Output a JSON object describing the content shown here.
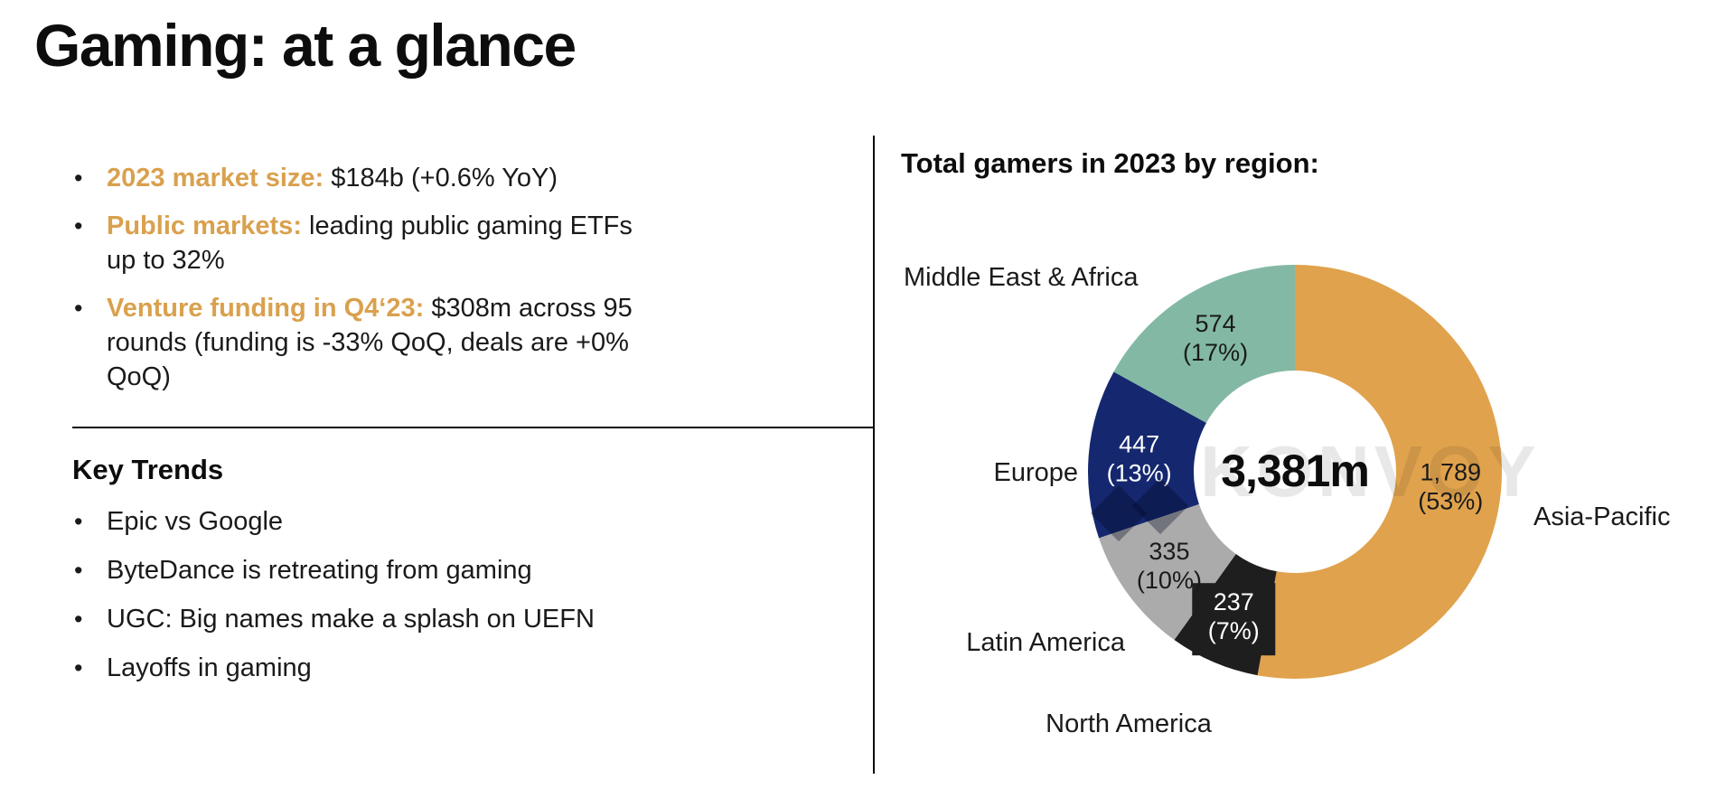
{
  "title": "Gaming: at a glance",
  "colors": {
    "accent": "#D9A14E",
    "text": "#1A1A1A",
    "background": "#FFFFFF"
  },
  "overview": {
    "bullets": [
      {
        "lead": "2023 market size:",
        "text": " $184b (+0.6% YoY)"
      },
      {
        "lead": "Public markets:",
        "text": " leading public gaming ETFs up to 32%"
      },
      {
        "lead": "Venture funding in Q4‘23:",
        "text": " $308m across 95 rounds (funding is -33% QoQ, deals are +0% QoQ)"
      }
    ]
  },
  "key_trends": {
    "heading": "Key Trends",
    "items": [
      "Epic vs Google",
      "ByteDance is retreating from gaming",
      "UGC: Big names make a splash on UEFN",
      "Layoffs in gaming"
    ]
  },
  "chart_data": {
    "type": "pie",
    "variant": "donut",
    "title": "Total gamers in 2023 by region:",
    "center_total": "3,381m",
    "total_value_millions": 3381,
    "watermark": "KONVOY",
    "legend_position": "outside-labels",
    "segments": [
      {
        "label": "Asia-Pacific",
        "value": 1789,
        "pct": 53,
        "color": "#E0A24C",
        "label_color": "#1A1A1A"
      },
      {
        "label": "North America",
        "value": 237,
        "pct": 7,
        "color": "#1E1E1E",
        "label_color": "#FFFFFF",
        "label_bg": "#1E1E1E"
      },
      {
        "label": "Latin America",
        "value": 335,
        "pct": 10,
        "color": "#ABABAB",
        "label_color": "#1A1A1A"
      },
      {
        "label": "Europe",
        "value": 447,
        "pct": 13,
        "color": "#15286F",
        "label_color": "#FFFFFF"
      },
      {
        "label": "Middle East & Africa",
        "value": 574,
        "pct": 17,
        "color": "#83B9A4",
        "label_color": "#1A1A1A"
      }
    ]
  }
}
